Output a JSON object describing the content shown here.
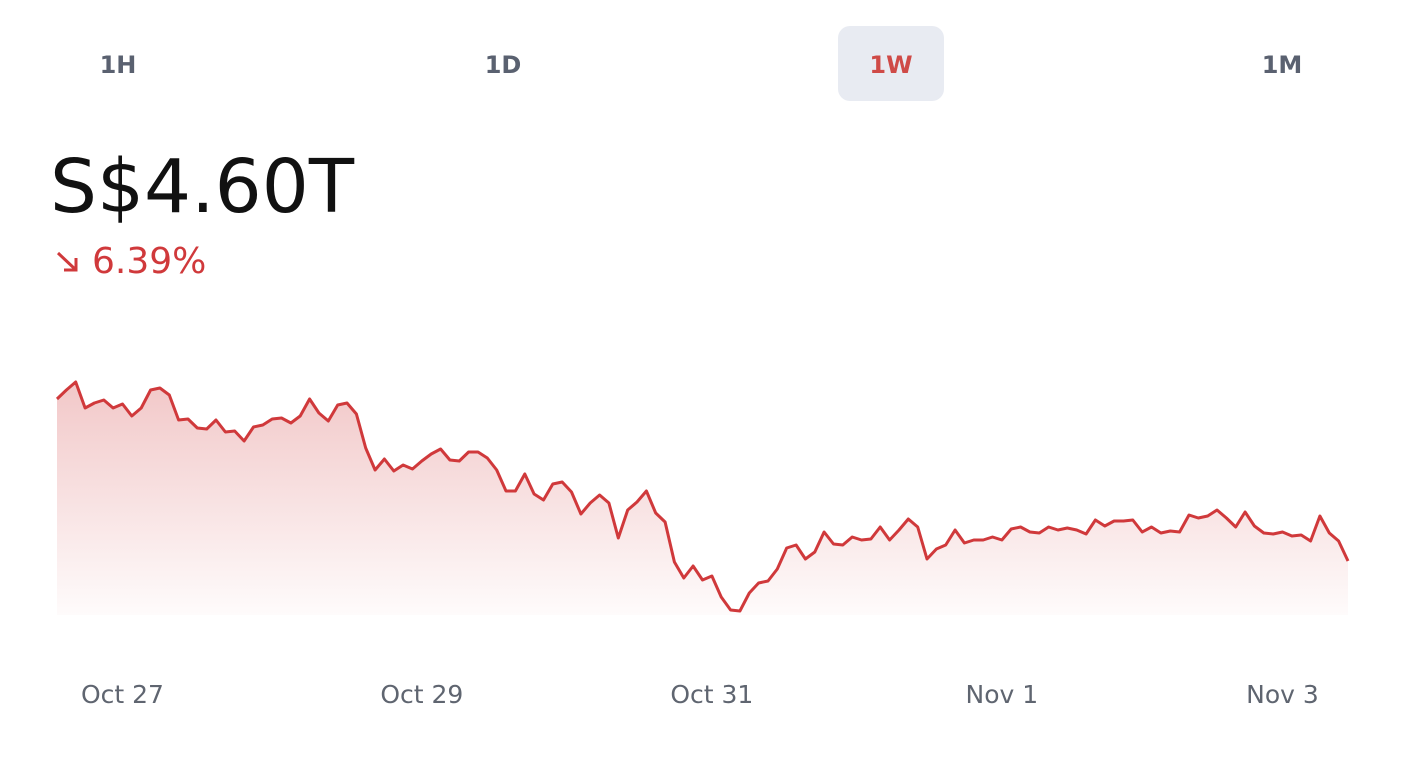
{
  "tabs": [
    "1H",
    "1D",
    "1W",
    "1M"
  ],
  "active_tab": 2,
  "price": "S$4.60T",
  "change": "6.39%",
  "chart_data": {
    "type": "line",
    "color": "#d0393b",
    "values": [
      4.922,
      4.94,
      4.956,
      4.904,
      4.914,
      4.92,
      4.904,
      4.912,
      4.888,
      4.904,
      4.94,
      4.944,
      4.93,
      4.88,
      4.882,
      4.864,
      4.862,
      4.88,
      4.856,
      4.858,
      4.838,
      4.866,
      4.87,
      4.882,
      4.884,
      4.874,
      4.888,
      4.922,
      4.894,
      4.878,
      4.91,
      4.914,
      4.892,
      4.824,
      4.78,
      4.802,
      4.778,
      4.79,
      4.782,
      4.798,
      4.812,
      4.822,
      4.8,
      4.798,
      4.816,
      4.816,
      4.804,
      4.78,
      4.738,
      4.738,
      4.772,
      4.732,
      4.72,
      4.752,
      4.756,
      4.736,
      4.692,
      4.714,
      4.73,
      4.714,
      4.644,
      4.7,
      4.716,
      4.738,
      4.694,
      4.676,
      4.596,
      4.564,
      4.588,
      4.56,
      4.568,
      4.526,
      4.5,
      4.498,
      4.534,
      4.554,
      4.558,
      4.582,
      4.624,
      4.63,
      4.602,
      4.616,
      4.656,
      4.632,
      4.63,
      4.646,
      4.64,
      4.642,
      4.666,
      4.64,
      4.66,
      4.682,
      4.666,
      4.602,
      4.622,
      4.63,
      4.66,
      4.634,
      4.64,
      4.64,
      4.646,
      4.64,
      4.662,
      4.666,
      4.656,
      4.654,
      4.666,
      4.66,
      4.664,
      4.66,
      4.652,
      4.68,
      4.668,
      4.678,
      4.678,
      4.68,
      4.656,
      4.666,
      4.654,
      4.658,
      4.656,
      4.69,
      4.684,
      4.688,
      4.7,
      4.684,
      4.666,
      4.696,
      4.668,
      4.654,
      4.652,
      4.656,
      4.648,
      4.65,
      4.638,
      4.688,
      4.654,
      4.638,
      4.598
    ],
    "xlim": [
      0,
      138
    ],
    "ylim": [
      4.49,
      4.96
    ],
    "xticks": [
      {
        "value": 7,
        "label": "Oct 27"
      },
      {
        "value": 39,
        "label": "Oct 29"
      },
      {
        "value": 70,
        "label": "Oct 31"
      },
      {
        "value": 101,
        "label": "Nov 1"
      },
      {
        "value": 131,
        "label": "Nov 3"
      }
    ],
    "grid": false
  }
}
